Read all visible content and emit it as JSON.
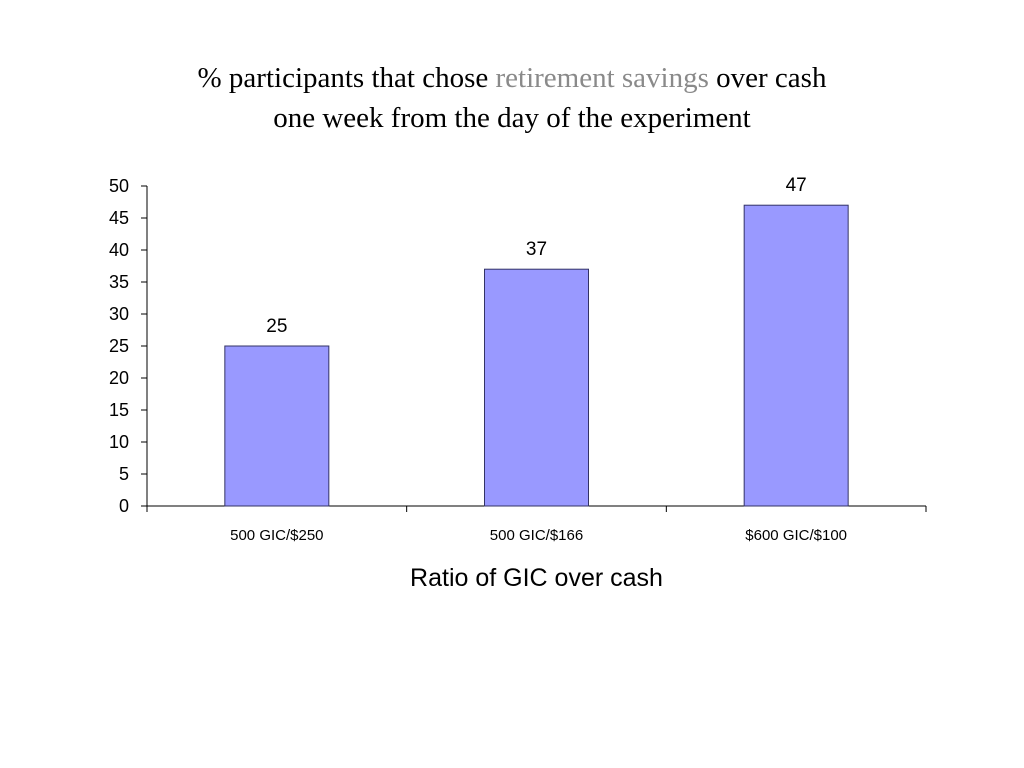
{
  "chart_data": {
    "type": "bar",
    "title_line1_before": "% participants that chose ",
    "title_line1_highlight": "retirement savings",
    "title_line1_after": " over cash",
    "title_line2": "one week from the day of the experiment",
    "categories": [
      "500 GIC/$250",
      "500 GIC/$166",
      "$600 GIC/$100"
    ],
    "values": [
      25,
      37,
      47
    ],
    "data_labels": [
      "25",
      "37",
      "47"
    ],
    "xlabel": "Ratio of GIC over cash",
    "ylabel": "",
    "ylim": [
      0,
      50
    ],
    "yticks": [
      "0",
      "5",
      "10",
      "15",
      "20",
      "25",
      "30",
      "35",
      "40",
      "45",
      "50"
    ],
    "grid": false,
    "legend": "none",
    "colors": {
      "bar_fill": "#9999ff",
      "bar_stroke": "#333366",
      "title_highlight": "#8a8a8a"
    }
  }
}
